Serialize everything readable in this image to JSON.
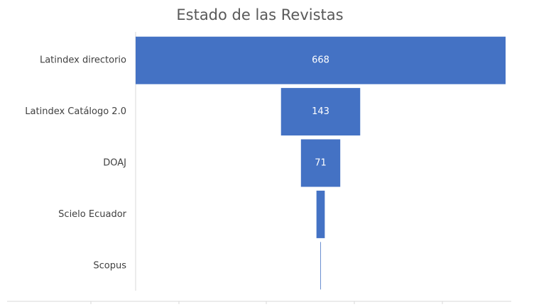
{
  "chart_data": {
    "type": "funnel",
    "title": "Estado de las Revistas",
    "categories": [
      "Latindex directorio",
      "Latindex Catálogo 2.0",
      "DOAJ",
      "Scielo Ecuador",
      "Scopus"
    ],
    "values": [
      668,
      143,
      71,
      15,
      1
    ],
    "color": "#4472c4"
  }
}
